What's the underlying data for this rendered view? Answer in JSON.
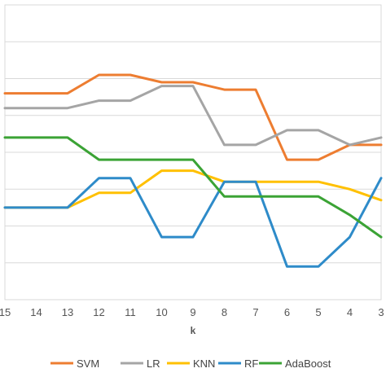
{
  "chart_data": {
    "type": "line",
    "xlabel": "k",
    "categories": [
      "15",
      "14",
      "13",
      "12",
      "11",
      "10",
      "9",
      "8",
      "7",
      "6",
      "5",
      "4",
      "3"
    ],
    "ylim": [
      0,
      8
    ],
    "grid": true,
    "legend_position": "bottom",
    "series": [
      {
        "name": "SVM",
        "color": "#ED7D31",
        "values": [
          5.6,
          5.6,
          5.6,
          6.1,
          6.1,
          5.9,
          5.9,
          5.7,
          5.7,
          3.8,
          3.8,
          4.2,
          4.2
        ]
      },
      {
        "name": "LR",
        "color": "#A5A5A5",
        "values": [
          5.2,
          5.2,
          5.2,
          5.4,
          5.4,
          5.8,
          5.8,
          4.2,
          4.2,
          4.6,
          4.6,
          4.2,
          4.4
        ]
      },
      {
        "name": "KNN",
        "color": "#FFC000",
        "values": [
          2.5,
          2.5,
          2.5,
          2.9,
          2.9,
          3.5,
          3.5,
          3.2,
          3.2,
          3.2,
          3.2,
          3.0,
          2.7
        ]
      },
      {
        "name": "RF",
        "color": "#2E8BC9",
        "values": [
          2.5,
          2.5,
          2.5,
          3.3,
          3.3,
          1.7,
          1.7,
          3.2,
          3.2,
          0.9,
          0.9,
          1.7,
          3.3
        ]
      },
      {
        "name": "AdaBoost",
        "color": "#3BA335",
        "values": [
          4.4,
          4.4,
          4.4,
          3.8,
          3.8,
          3.8,
          3.8,
          2.8,
          2.8,
          2.8,
          2.8,
          2.3,
          1.7
        ]
      }
    ]
  }
}
